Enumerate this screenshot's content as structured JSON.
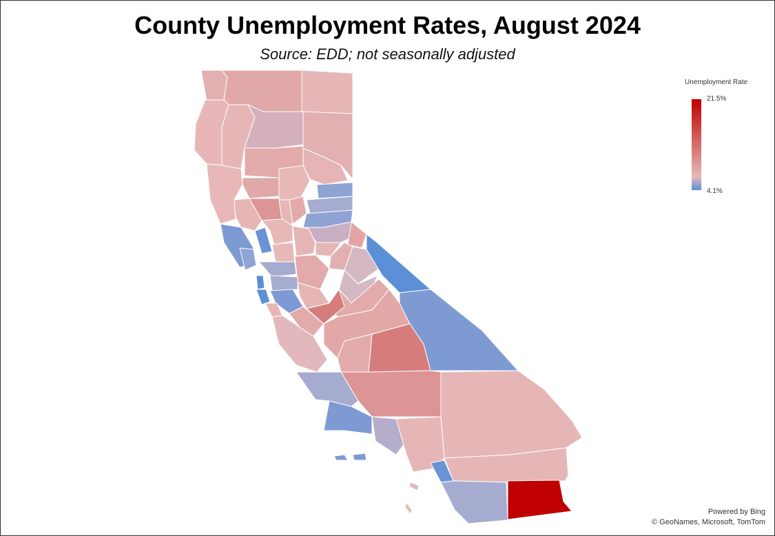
{
  "title": "County Unemployment Rates, August 2024",
  "subtitle": "Source:  EDD; not seasonally adjusted",
  "legend": {
    "title": "Unemployment Rate",
    "max_label": "21.5%",
    "min_label": "4.1%",
    "max": 21.5,
    "min": 4.1,
    "colors": {
      "high": "#c00000",
      "mid": "#e6b8b7",
      "low": "#5b8fd6"
    }
  },
  "attribution": {
    "line1": "Powered by Bing",
    "line2": "© GeoNames, Microsoft, TomTom"
  }
}
